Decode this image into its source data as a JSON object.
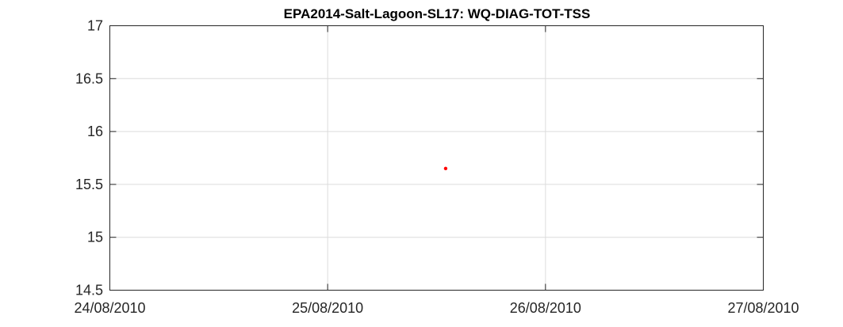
{
  "chart_data": {
    "type": "scatter",
    "title": "EPA2014-Salt-Lagoon-SL17: WQ-DIAG-TOT-TSS",
    "xlabel": "",
    "ylabel": "",
    "x_type": "date",
    "xlim": [
      "24/08/2010",
      "27/08/2010"
    ],
    "ylim": [
      14.5,
      17
    ],
    "x_ticks": [
      "24/08/2010",
      "25/08/2010",
      "26/08/2010",
      "27/08/2010"
    ],
    "y_ticks": [
      "14.5",
      "15",
      "15.5",
      "16",
      "16.5",
      "17"
    ],
    "grid": true,
    "legend": "none",
    "series": [
      {
        "color": "#ff0000",
        "points": [
          {
            "x": "25/08/2010 13:00",
            "y": 15.65
          }
        ]
      }
    ]
  }
}
